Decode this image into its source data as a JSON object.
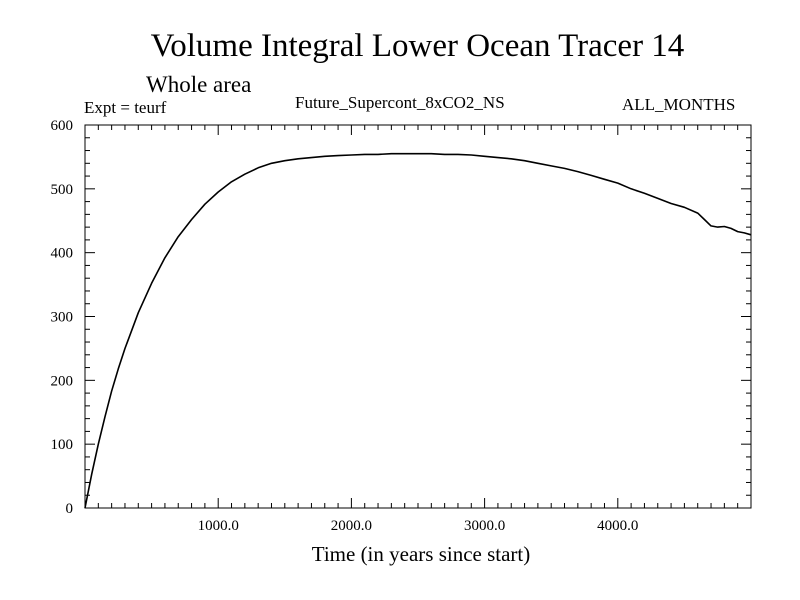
{
  "chart_data": {
    "type": "line",
    "title": "Volume Integral Lower Ocean Tracer 14",
    "subtitle": "Whole area",
    "annotations": {
      "left": "Expt = teurf",
      "center": "Future_Supercont_8xCO2_NS",
      "right": "ALL_MONTHS"
    },
    "xlabel": "Time (in years since start)",
    "ylabel": "",
    "xlim": [
      0,
      5000
    ],
    "ylim": [
      0,
      600
    ],
    "x_ticks": [
      1000,
      2000,
      3000,
      4000
    ],
    "x_tick_labels": [
      "1000.0",
      "2000.0",
      "3000.0",
      "4000.0"
    ],
    "y_ticks": [
      0,
      100,
      200,
      300,
      400,
      500,
      600
    ],
    "y_tick_labels": [
      "0",
      "100",
      "200",
      "300",
      "400",
      "500",
      "600"
    ],
    "grid": false,
    "line_color": "#000000",
    "series": [
      {
        "x": [
          0,
          50,
          100,
          150,
          200,
          250,
          300,
          400,
          500,
          600,
          700,
          800,
          900,
          1000,
          1100,
          1200,
          1300,
          1400,
          1500,
          1600,
          1700,
          1800,
          1900,
          2000,
          2100,
          2200,
          2300,
          2400,
          2500,
          2600,
          2700,
          2800,
          2900,
          3000,
          3100,
          3200,
          3300,
          3400,
          3500,
          3600,
          3700,
          3800,
          3900,
          4000,
          4100,
          4200,
          4300,
          4400,
          4500,
          4600,
          4650,
          4700,
          4750,
          4800,
          4850,
          4900,
          4950,
          5000
        ],
        "y": [
          0,
          53,
          100,
          143,
          183,
          218,
          250,
          306,
          352,
          392,
          425,
          452,
          476,
          495,
          511,
          523,
          533,
          540,
          544,
          547,
          549,
          551,
          552,
          553,
          554,
          554,
          555,
          555,
          555,
          555,
          554,
          554,
          553,
          551,
          549,
          547,
          544,
          540,
          536,
          532,
          527,
          521,
          515,
          509,
          500,
          493,
          485,
          477,
          471,
          462,
          452,
          442,
          440,
          441,
          438,
          433,
          431,
          428
        ]
      }
    ]
  }
}
